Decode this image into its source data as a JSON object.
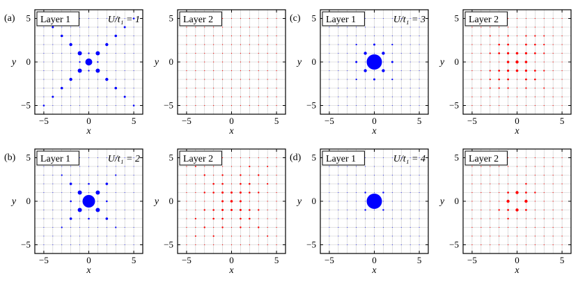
{
  "figure": {
    "xlabel": "x",
    "ylabel": "y",
    "x_ticks": [
      "−5",
      "0",
      "5"
    ],
    "y_ticks": [
      "5",
      "0",
      "−5"
    ],
    "colors": {
      "layer1": "#0000ff",
      "layer2": "#ff0000",
      "grid": "#c8c8c8",
      "frame": "#000000"
    }
  },
  "chart_data": [
    {
      "type": "scatter",
      "panel": "(a)",
      "title": "Layer 1",
      "annotation": "U/t₁ = 1",
      "color": "#0000ff",
      "xlim": [
        -6,
        6
      ],
      "ylim": [
        -6,
        6
      ],
      "grid": true,
      "default_size": 0.5,
      "points": [
        {
          "x": 0,
          "y": 0,
          "s": 5
        },
        {
          "x": 1,
          "y": 1,
          "s": 3
        },
        {
          "x": -1,
          "y": -1,
          "s": 3
        },
        {
          "x": 1,
          "y": -1,
          "s": 3
        },
        {
          "x": -1,
          "y": 1,
          "s": 3
        },
        {
          "x": 2,
          "y": 2,
          "s": 2.2
        },
        {
          "x": -2,
          "y": -2,
          "s": 2.2
        },
        {
          "x": 2,
          "y": -2,
          "s": 2.2
        },
        {
          "x": -2,
          "y": 2,
          "s": 2.2
        },
        {
          "x": 3,
          "y": 3,
          "s": 1.8
        },
        {
          "x": -3,
          "y": -3,
          "s": 1.8
        },
        {
          "x": 3,
          "y": -3,
          "s": 1.8
        },
        {
          "x": -3,
          "y": 3,
          "s": 1.8
        },
        {
          "x": 4,
          "y": 4,
          "s": 1.5
        },
        {
          "x": -4,
          "y": -4,
          "s": 1.5
        },
        {
          "x": 4,
          "y": -4,
          "s": 1.5
        },
        {
          "x": -4,
          "y": 4,
          "s": 1.5
        },
        {
          "x": 5,
          "y": 5,
          "s": 1.3
        },
        {
          "x": -5,
          "y": -5,
          "s": 1.3
        },
        {
          "x": 5,
          "y": -5,
          "s": 1.3
        },
        {
          "x": -5,
          "y": 5,
          "s": 1.3
        },
        {
          "x": 1,
          "y": 0,
          "s": 1.1
        },
        {
          "x": -1,
          "y": 0,
          "s": 1.1
        },
        {
          "x": 0,
          "y": 1,
          "s": 1.1
        },
        {
          "x": 0,
          "y": -1,
          "s": 1.1
        }
      ]
    },
    {
      "type": "scatter",
      "panel": "",
      "title": "Layer 2",
      "annotation": "",
      "color": "#ff0000",
      "xlim": [
        -6,
        6
      ],
      "ylim": [
        -6,
        6
      ],
      "grid": true,
      "default_size": 0.6,
      "points": []
    },
    {
      "type": "scatter",
      "panel": "(c)",
      "title": "Layer 1",
      "annotation": "U/t₁ = 3",
      "color": "#0000ff",
      "xlim": [
        -6,
        6
      ],
      "ylim": [
        -6,
        6
      ],
      "grid": true,
      "default_size": 0.5,
      "points": [
        {
          "x": 0,
          "y": 0,
          "s": 11
        },
        {
          "x": 1,
          "y": 1,
          "s": 2.2
        },
        {
          "x": -1,
          "y": -1,
          "s": 2.2
        },
        {
          "x": 1,
          "y": -1,
          "s": 2.2
        },
        {
          "x": -1,
          "y": 1,
          "s": 2.2
        },
        {
          "x": 2,
          "y": 0,
          "s": 1.5
        },
        {
          "x": -2,
          "y": 0,
          "s": 1.5
        },
        {
          "x": 0,
          "y": 2,
          "s": 1.5
        },
        {
          "x": 0,
          "y": -2,
          "s": 1.5
        },
        {
          "x": 2,
          "y": 2,
          "s": 1.1
        },
        {
          "x": -2,
          "y": -2,
          "s": 1.1
        },
        {
          "x": 2,
          "y": -2,
          "s": 1.1
        },
        {
          "x": -2,
          "y": 2,
          "s": 1.1
        }
      ]
    },
    {
      "type": "scatter",
      "panel": "",
      "title": "Layer 2",
      "annotation": "",
      "color": "#ff0000",
      "xlim": [
        -6,
        6
      ],
      "ylim": [
        -6,
        6
      ],
      "grid": true,
      "default_size": 0.6,
      "points": [
        {
          "x": 0,
          "y": 0,
          "s": 2.2
        },
        {
          "x": 1,
          "y": 0,
          "s": 1.8
        },
        {
          "x": -1,
          "y": 0,
          "s": 1.8
        },
        {
          "x": 0,
          "y": 1,
          "s": 1.8
        },
        {
          "x": 0,
          "y": -1,
          "s": 1.8
        },
        {
          "x": 1,
          "y": 1,
          "s": 1.6
        },
        {
          "x": -1,
          "y": -1,
          "s": 1.6
        },
        {
          "x": 1,
          "y": -1,
          "s": 1.6
        },
        {
          "x": -1,
          "y": 1,
          "s": 1.6
        },
        {
          "x": 2,
          "y": 1,
          "s": 1.4
        },
        {
          "x": -2,
          "y": -1,
          "s": 1.4
        },
        {
          "x": 2,
          "y": -1,
          "s": 1.4
        },
        {
          "x": -2,
          "y": 1,
          "s": 1.4
        },
        {
          "x": 1,
          "y": 2,
          "s": 1.4
        },
        {
          "x": -1,
          "y": -2,
          "s": 1.4
        },
        {
          "x": 1,
          "y": -2,
          "s": 1.4
        },
        {
          "x": -1,
          "y": 2,
          "s": 1.4
        },
        {
          "x": 2,
          "y": 2,
          "s": 1.3
        },
        {
          "x": -2,
          "y": -2,
          "s": 1.3
        },
        {
          "x": 2,
          "y": -2,
          "s": 1.3
        },
        {
          "x": -2,
          "y": 2,
          "s": 1.3
        },
        {
          "x": 3,
          "y": 1,
          "s": 1.1
        },
        {
          "x": -3,
          "y": -1,
          "s": 1.1
        },
        {
          "x": 3,
          "y": -1,
          "s": 1.1
        },
        {
          "x": -3,
          "y": 1,
          "s": 1.1
        },
        {
          "x": 1,
          "y": 3,
          "s": 1.1
        },
        {
          "x": -1,
          "y": -3,
          "s": 1.1
        },
        {
          "x": 1,
          "y": -3,
          "s": 1.1
        },
        {
          "x": -1,
          "y": 3,
          "s": 1.1
        },
        {
          "x": 2,
          "y": 3,
          "s": 1.1
        },
        {
          "x": -2,
          "y": -3,
          "s": 1.1
        },
        {
          "x": 3,
          "y": 2,
          "s": 1.1
        },
        {
          "x": -3,
          "y": -2,
          "s": 1.1
        },
        {
          "x": 3,
          "y": 3,
          "s": 1.0
        },
        {
          "x": -3,
          "y": -3,
          "s": 1.0
        },
        {
          "x": 3,
          "y": -3,
          "s": 1.0
        },
        {
          "x": -3,
          "y": 3,
          "s": 1.0
        }
      ]
    },
    {
      "type": "scatter",
      "panel": "(b)",
      "title": "Layer 1",
      "annotation": "U/t₁ = 2",
      "color": "#0000ff",
      "xlim": [
        -6,
        6
      ],
      "ylim": [
        -6,
        6
      ],
      "grid": true,
      "default_size": 0.5,
      "points": [
        {
          "x": 0,
          "y": 0,
          "s": 9
        },
        {
          "x": 1,
          "y": 1,
          "s": 3
        },
        {
          "x": -1,
          "y": -1,
          "s": 3
        },
        {
          "x": 1,
          "y": -1,
          "s": 3
        },
        {
          "x": -1,
          "y": 1,
          "s": 3
        },
        {
          "x": 2,
          "y": 2,
          "s": 1.8
        },
        {
          "x": -2,
          "y": -2,
          "s": 1.8
        },
        {
          "x": 2,
          "y": -2,
          "s": 1.8
        },
        {
          "x": -2,
          "y": 2,
          "s": 1.8
        },
        {
          "x": 2,
          "y": 0,
          "s": 1.3
        },
        {
          "x": -2,
          "y": 0,
          "s": 1.3
        },
        {
          "x": 0,
          "y": 2,
          "s": 1.3
        },
        {
          "x": 0,
          "y": -2,
          "s": 1.3
        },
        {
          "x": 3,
          "y": 3,
          "s": 1.1
        },
        {
          "x": -3,
          "y": -3,
          "s": 1.1
        },
        {
          "x": 3,
          "y": -3,
          "s": 1.1
        },
        {
          "x": -3,
          "y": 3,
          "s": 1.1
        }
      ]
    },
    {
      "type": "scatter",
      "panel": "",
      "title": "Layer 2",
      "annotation": "",
      "color": "#ff0000",
      "xlim": [
        -6,
        6
      ],
      "ylim": [
        -6,
        6
      ],
      "grid": true,
      "default_size": 0.6,
      "points": [
        {
          "x": 0,
          "y": 0,
          "s": 1.8
        },
        {
          "x": 1,
          "y": 0,
          "s": 1.5
        },
        {
          "x": -1,
          "y": 0,
          "s": 1.5
        },
        {
          "x": 0,
          "y": 1,
          "s": 1.5
        },
        {
          "x": 0,
          "y": -1,
          "s": 1.5
        },
        {
          "x": 1,
          "y": 1,
          "s": 1.5
        },
        {
          "x": -1,
          "y": -1,
          "s": 1.5
        },
        {
          "x": 1,
          "y": -1,
          "s": 1.5
        },
        {
          "x": -1,
          "y": 1,
          "s": 1.5
        },
        {
          "x": 2,
          "y": 1,
          "s": 1.3
        },
        {
          "x": -2,
          "y": -1,
          "s": 1.3
        },
        {
          "x": 2,
          "y": -1,
          "s": 1.3
        },
        {
          "x": -2,
          "y": 1,
          "s": 1.3
        },
        {
          "x": 1,
          "y": 2,
          "s": 1.3
        },
        {
          "x": -1,
          "y": -2,
          "s": 1.3
        },
        {
          "x": 1,
          "y": -2,
          "s": 1.3
        },
        {
          "x": -1,
          "y": 2,
          "s": 1.3
        },
        {
          "x": 2,
          "y": 2,
          "s": 1.3
        },
        {
          "x": -2,
          "y": -2,
          "s": 1.3
        },
        {
          "x": 2,
          "y": -2,
          "s": 1.3
        },
        {
          "x": -2,
          "y": 2,
          "s": 1.3
        },
        {
          "x": 3,
          "y": 1,
          "s": 1.2
        },
        {
          "x": -3,
          "y": -1,
          "s": 1.2
        },
        {
          "x": 3,
          "y": -1,
          "s": 1.2
        },
        {
          "x": -3,
          "y": 1,
          "s": 1.2
        },
        {
          "x": 1,
          "y": 3,
          "s": 1.2
        },
        {
          "x": -1,
          "y": -3,
          "s": 1.2
        },
        {
          "x": 1,
          "y": -3,
          "s": 1.2
        },
        {
          "x": -1,
          "y": 3,
          "s": 1.2
        },
        {
          "x": 3,
          "y": 3,
          "s": 1.2
        },
        {
          "x": -3,
          "y": -3,
          "s": 1.2
        },
        {
          "x": 3,
          "y": -3,
          "s": 1.2
        },
        {
          "x": -3,
          "y": 3,
          "s": 1.2
        },
        {
          "x": 4,
          "y": 2,
          "s": 1.1
        },
        {
          "x": -4,
          "y": -2,
          "s": 1.1
        },
        {
          "x": 2,
          "y": 4,
          "s": 1.1
        },
        {
          "x": -2,
          "y": -4,
          "s": 1.1
        },
        {
          "x": 4,
          "y": 4,
          "s": 1.0
        },
        {
          "x": -4,
          "y": -4,
          "s": 1.0
        },
        {
          "x": 4,
          "y": -4,
          "s": 1.0
        },
        {
          "x": -4,
          "y": 4,
          "s": 1.0
        }
      ]
    },
    {
      "type": "scatter",
      "panel": "(d)",
      "title": "Layer 1",
      "annotation": "U/t₁ = 4",
      "color": "#0000ff",
      "xlim": [
        -6,
        6
      ],
      "ylim": [
        -6,
        6
      ],
      "grid": true,
      "default_size": 0.5,
      "points": [
        {
          "x": 0,
          "y": 0,
          "s": 11
        },
        {
          "x": 1,
          "y": 1,
          "s": 1.2
        },
        {
          "x": -1,
          "y": -1,
          "s": 1.2
        },
        {
          "x": 1,
          "y": -1,
          "s": 1.2
        },
        {
          "x": -1,
          "y": 1,
          "s": 1.2
        }
      ]
    },
    {
      "type": "scatter",
      "panel": "",
      "title": "Layer 2",
      "annotation": "",
      "color": "#ff0000",
      "xlim": [
        -6,
        6
      ],
      "ylim": [
        -6,
        6
      ],
      "grid": true,
      "default_size": 0.6,
      "points": [
        {
          "x": 1,
          "y": 0,
          "s": 2.2
        },
        {
          "x": -1,
          "y": 0,
          "s": 2.2
        },
        {
          "x": 0,
          "y": 1,
          "s": 2.2
        },
        {
          "x": 0,
          "y": -1,
          "s": 2.2
        },
        {
          "x": 1,
          "y": 1,
          "s": 1.4
        },
        {
          "x": -1,
          "y": -1,
          "s": 1.4
        },
        {
          "x": 1,
          "y": -1,
          "s": 1.4
        },
        {
          "x": -1,
          "y": 1,
          "s": 1.4
        },
        {
          "x": 2,
          "y": 1,
          "s": 1.2
        },
        {
          "x": -2,
          "y": -1,
          "s": 1.2
        },
        {
          "x": 1,
          "y": 2,
          "s": 1.2
        },
        {
          "x": -1,
          "y": -2,
          "s": 1.2
        }
      ]
    }
  ]
}
